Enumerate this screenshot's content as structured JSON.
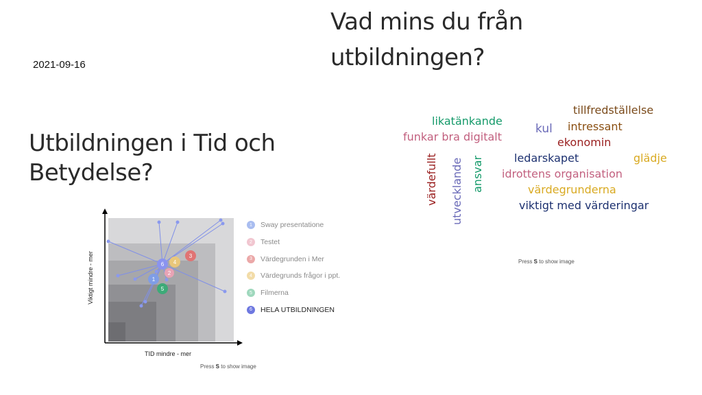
{
  "date": "2021-09-16",
  "left_title": "Utbildningen i Tid och Betydelse?",
  "right_title": "Vad mins du från utbildningen?",
  "press_hint": {
    "prefix": "Press ",
    "key": "S",
    "suffix": " to show image"
  },
  "chart_data": {
    "type": "scatter",
    "xlabel": "TID mindre - mer",
    "ylabel": "Viktigt mindre - mer",
    "markers": [
      {
        "label": "1",
        "name": "Sway presentatione",
        "color": "#7f9de6"
      },
      {
        "label": "2",
        "name": "Testet",
        "color": "#e8a3b4"
      },
      {
        "label": "3",
        "name": "Värdegrunden i Mer",
        "color": "#e07474"
      },
      {
        "label": "4",
        "name": "Värdegrunds frågor i ppt.",
        "color": "#e9c77a"
      },
      {
        "label": "5",
        "name": "Filmerna",
        "color": "#3daa78"
      },
      {
        "label": "6",
        "name": "HELA UTBILDNINGEN",
        "color": "#6e78e0"
      }
    ]
  },
  "word_cloud": [
    {
      "text": "tillfredställelse",
      "color": "#7a4a1a"
    },
    {
      "text": "likatänkande",
      "color": "#159a6a"
    },
    {
      "text": "intressant",
      "color": "#8a4f12"
    },
    {
      "text": "kul",
      "color": "#6a6ab8"
    },
    {
      "text": "funkar bra digitalt",
      "color": "#c2607f"
    },
    {
      "text": "ekonomin",
      "color": "#9a2020"
    },
    {
      "text": "ledarskapet",
      "color": "#1d3170"
    },
    {
      "text": "glädje",
      "color": "#d9aa22"
    },
    {
      "text": "idrottens organisation",
      "color": "#c2607f"
    },
    {
      "text": "värdegrunderna",
      "color": "#d9aa22"
    },
    {
      "text": "viktigt med värderingar",
      "color": "#1d3170"
    },
    {
      "text": "värdefullt",
      "color": "#9a2020"
    },
    {
      "text": "utvecklande",
      "color": "#6a6ab8"
    },
    {
      "text": "ansvar",
      "color": "#159a6a"
    }
  ]
}
